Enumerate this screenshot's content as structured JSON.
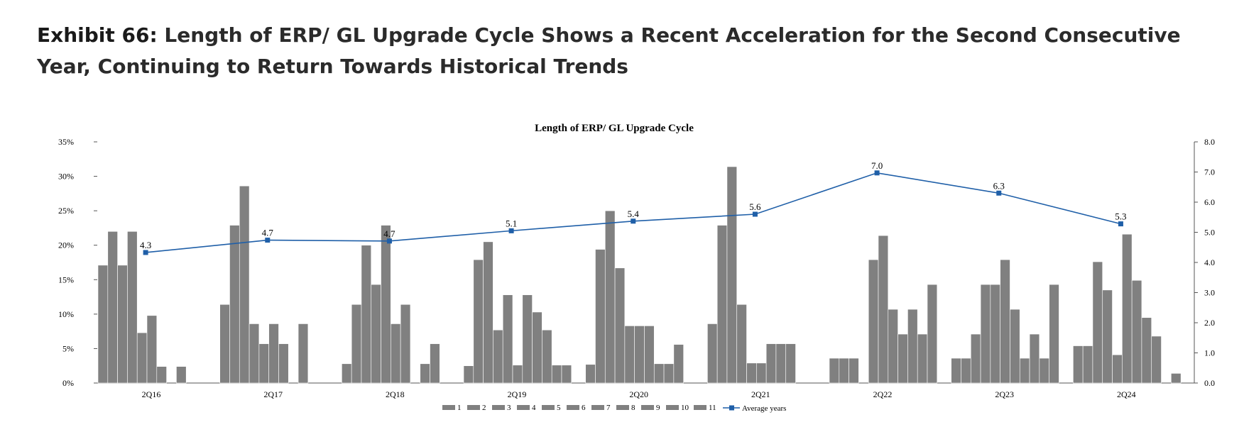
{
  "exhibit": {
    "label": "Exhibit 66:",
    "title": "Length of ERP/ GL Upgrade Cycle Shows a Recent Acceleration for the Second Consecutive Year, Continuing to Return Towards Historical Trends"
  },
  "colors": {
    "bar": "#808080",
    "line": "#1f5fa8",
    "axis": "#555555"
  },
  "chart_data": {
    "type": "bar",
    "title": "Length of ERP/ GL Upgrade Cycle",
    "xlabel": "",
    "ylabel": "",
    "y2label": "",
    "ylim": [
      0,
      35
    ],
    "y_ticks": [
      "0%",
      "5%",
      "10%",
      "15%",
      "20%",
      "25%",
      "30%",
      "35%"
    ],
    "y2lim": [
      0,
      8
    ],
    "y2_ticks": [
      "0.0",
      "1.0",
      "2.0",
      "3.0",
      "4.0",
      "5.0",
      "6.0",
      "7.0",
      "8.0"
    ],
    "legend_position": "bottom",
    "categories": [
      "2Q16",
      "2Q17",
      "2Q18",
      "2Q19",
      "2Q20",
      "2Q21",
      "2Q22",
      "2Q23",
      "2Q24"
    ],
    "series": [
      {
        "name": "1",
        "values": [
          17.1,
          11.4,
          2.8,
          2.5,
          2.7,
          8.6,
          3.6,
          3.6,
          5.4
        ]
      },
      {
        "name": "2",
        "values": [
          22.0,
          22.9,
          11.4,
          17.9,
          19.4,
          22.9,
          3.6,
          3.6,
          5.4
        ]
      },
      {
        "name": "3",
        "values": [
          17.1,
          28.6,
          20.0,
          20.5,
          25.0,
          31.4,
          3.6,
          7.1,
          17.6
        ]
      },
      {
        "name": "4",
        "values": [
          22.0,
          8.6,
          14.3,
          7.7,
          16.7,
          11.4,
          0,
          14.3,
          13.5
        ]
      },
      {
        "name": "5",
        "values": [
          7.3,
          5.7,
          22.9,
          12.8,
          8.3,
          2.9,
          17.9,
          14.3,
          4.1
        ]
      },
      {
        "name": "6",
        "values": [
          9.8,
          8.6,
          8.6,
          2.6,
          8.3,
          2.9,
          21.4,
          17.9,
          21.6
        ]
      },
      {
        "name": "7",
        "values": [
          2.4,
          5.7,
          11.4,
          12.8,
          8.3,
          5.7,
          10.7,
          10.7,
          14.9
        ]
      },
      {
        "name": "8",
        "values": [
          0,
          0,
          0,
          10.3,
          2.8,
          5.7,
          7.1,
          3.6,
          9.5
        ]
      },
      {
        "name": "9",
        "values": [
          2.4,
          8.6,
          2.8,
          7.7,
          2.8,
          5.7,
          10.7,
          7.1,
          6.8
        ]
      },
      {
        "name": "10",
        "values": [
          0,
          0,
          5.7,
          2.6,
          5.6,
          0,
          7.1,
          3.6,
          0
        ]
      },
      {
        "name": "11",
        "values": [
          0,
          0,
          0,
          2.6,
          0,
          0,
          14.3,
          14.3,
          1.4
        ]
      }
    ],
    "line_series": {
      "name": "Average years",
      "axis": "right",
      "values": [
        4.33,
        4.74,
        4.71,
        5.05,
        5.37,
        5.6,
        6.97,
        6.3,
        5.28
      ],
      "labels": [
        "4.3",
        "4.7",
        "4.7",
        "5.1",
        "5.4",
        "5.6",
        "7.0",
        "6.3",
        "5.3"
      ]
    }
  }
}
